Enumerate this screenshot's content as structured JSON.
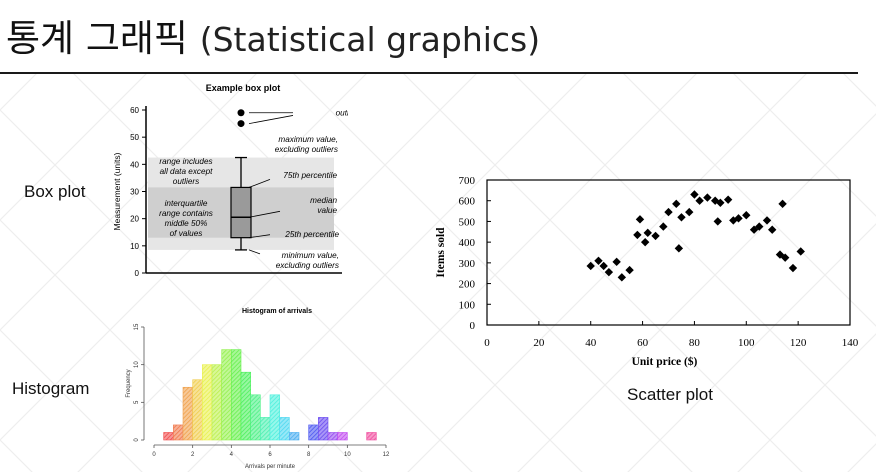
{
  "slide": {
    "title_korean": "통계 그래픽",
    "title_english": "(Statistical graphics)",
    "labels": {
      "box_plot": "Box plot",
      "histogram": "Histogram",
      "scatter_plot": "Scatter plot"
    }
  },
  "chart_data": [
    {
      "type": "box",
      "title": "Example box plot",
      "ylabel": "Measurement (units)",
      "ylim": [
        0,
        60
      ],
      "yticks": [
        0,
        10,
        20,
        30,
        40,
        50,
        60
      ],
      "box": {
        "min": 8.5,
        "q1": 13,
        "median": 20.5,
        "q3": 31.5,
        "max": 42.5,
        "outliers": [
          59,
          55
        ]
      },
      "annotations": {
        "outliers": "outliers",
        "max": [
          "maximum value,",
          "excluding outliers"
        ],
        "q3": "75th percentile",
        "median": [
          "median",
          "value"
        ],
        "q1": "25th percentile",
        "min": [
          "minimum value,",
          "excluding outliers"
        ],
        "range": [
          "range includes",
          "all data except",
          "outliers"
        ],
        "iqr": [
          "interquartile",
          "range contains",
          "middle 50%",
          "of values"
        ]
      }
    },
    {
      "type": "bar",
      "title": "Histogram of arrivals",
      "xlabel": "Arrivals per minute",
      "ylabel": "Frequency",
      "xlim": [
        0,
        12
      ],
      "ylim": [
        0,
        15
      ],
      "xticks": [
        0,
        2,
        4,
        6,
        8,
        10,
        12
      ],
      "yticks": [
        0,
        5,
        10,
        15
      ],
      "bin_width": 0.5,
      "bins": [
        {
          "x": 0.5,
          "freq": 1
        },
        {
          "x": 1.0,
          "freq": 2
        },
        {
          "x": 1.5,
          "freq": 7
        },
        {
          "x": 2.0,
          "freq": 8
        },
        {
          "x": 2.5,
          "freq": 10
        },
        {
          "x": 3.0,
          "freq": 10
        },
        {
          "x": 3.5,
          "freq": 12
        },
        {
          "x": 4.0,
          "freq": 12
        },
        {
          "x": 4.5,
          "freq": 9
        },
        {
          "x": 5.0,
          "freq": 6
        },
        {
          "x": 5.5,
          "freq": 3
        },
        {
          "x": 6.0,
          "freq": 6
        },
        {
          "x": 6.5,
          "freq": 3
        },
        {
          "x": 7.0,
          "freq": 1
        },
        {
          "x": 7.5,
          "freq": 0
        },
        {
          "x": 8.0,
          "freq": 2
        },
        {
          "x": 8.5,
          "freq": 3
        },
        {
          "x": 9.0,
          "freq": 1
        },
        {
          "x": 9.5,
          "freq": 1
        },
        {
          "x": 10.0,
          "freq": 0
        },
        {
          "x": 10.5,
          "freq": 0
        },
        {
          "x": 11.0,
          "freq": 1
        }
      ]
    },
    {
      "type": "scatter",
      "xlabel": "Unit price ($)",
      "ylabel": "Items sold",
      "xlim": [
        0,
        140
      ],
      "ylim": [
        0,
        700
      ],
      "xticks": [
        0,
        20,
        40,
        60,
        80,
        100,
        120,
        140
      ],
      "yticks": [
        0,
        100,
        200,
        300,
        400,
        500,
        600,
        700
      ],
      "points": [
        [
          40,
          285
        ],
        [
          43,
          310
        ],
        [
          45,
          285
        ],
        [
          47,
          255
        ],
        [
          50,
          305
        ],
        [
          52,
          230
        ],
        [
          55,
          265
        ],
        [
          58,
          435
        ],
        [
          59,
          510
        ],
        [
          61,
          400
        ],
        [
          62,
          445
        ],
        [
          65,
          430
        ],
        [
          68,
          475
        ],
        [
          70,
          545
        ],
        [
          73,
          585
        ],
        [
          74,
          370
        ],
        [
          75,
          520
        ],
        [
          78,
          545
        ],
        [
          80,
          630
        ],
        [
          82,
          600
        ],
        [
          85,
          615
        ],
        [
          88,
          600
        ],
        [
          89,
          500
        ],
        [
          90,
          590
        ],
        [
          93,
          605
        ],
        [
          95,
          505
        ],
        [
          97,
          515
        ],
        [
          100,
          530
        ],
        [
          103,
          460
        ],
        [
          105,
          475
        ],
        [
          108,
          505
        ],
        [
          110,
          460
        ],
        [
          113,
          340
        ],
        [
          114,
          585
        ],
        [
          115,
          325
        ],
        [
          118,
          275
        ],
        [
          121,
          355
        ]
      ]
    }
  ]
}
